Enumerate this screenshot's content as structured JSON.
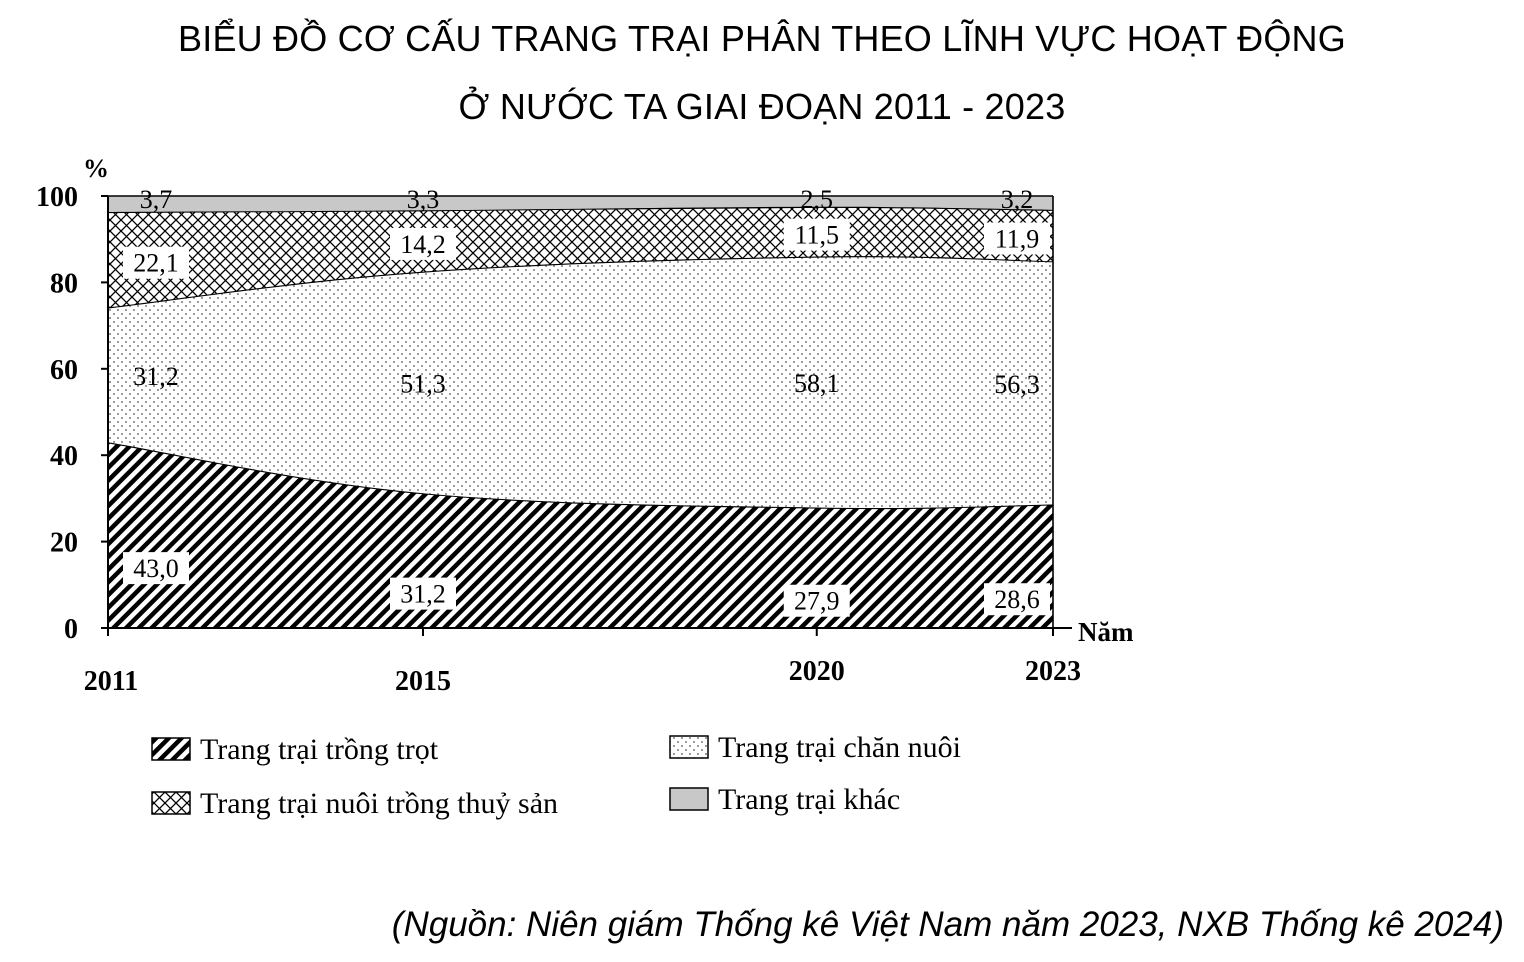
{
  "title": {
    "line1": "BIỂU ĐỒ CƠ CẤU TRANG TRẠI PHÂN THEO LĨNH VỰC HOẠT ĐỘNG",
    "line2": "Ở NƯỚC TA GIAI ĐOẠN 2011 - 2023"
  },
  "source": "(Nguồn: Niên giám Thống kê Việt Nam năm 2023, NXB Thống kê 2024)",
  "chart_data": {
    "type": "area",
    "stacked": true,
    "x": [
      2011,
      2015,
      2020,
      2023
    ],
    "x_tick_labels": [
      "2011",
      "2015",
      "2020",
      "2023"
    ],
    "xlabel": "Năm",
    "ylabel": "%",
    "ylim": [
      0,
      100
    ],
    "y_ticks": [
      0,
      20,
      40,
      60,
      80,
      100
    ],
    "y_tick_labels": [
      "0",
      "20",
      "40",
      "60",
      "80",
      "100"
    ],
    "series": [
      {
        "name": "Trang trại trồng trọt",
        "values": [
          43.0,
          31.2,
          27.9,
          28.6
        ],
        "labels": [
          "43,0",
          "31,2",
          "27,9",
          "28,6"
        ],
        "pattern": "diagonal-hatch"
      },
      {
        "name": "Trang trại chăn nuôi",
        "values": [
          31.2,
          51.3,
          58.1,
          56.3
        ],
        "labels": [
          "31,2",
          "51,3",
          "58,1",
          "56,3"
        ],
        "pattern": "dots"
      },
      {
        "name": "Trang trại nuôi trồng thuỷ sản",
        "values": [
          22.1,
          14.2,
          11.5,
          11.9
        ],
        "labels": [
          "22,1",
          "14,2",
          "11,5",
          "11,9"
        ],
        "pattern": "cross-hatch"
      },
      {
        "name": "Trang trại khác",
        "values": [
          3.7,
          3.3,
          2.5,
          3.2
        ],
        "labels": [
          "3,7",
          "3,3",
          "2,5",
          "3,2"
        ],
        "pattern": "solid-gray"
      }
    ],
    "grid": false,
    "legend_placement": "bottom"
  }
}
